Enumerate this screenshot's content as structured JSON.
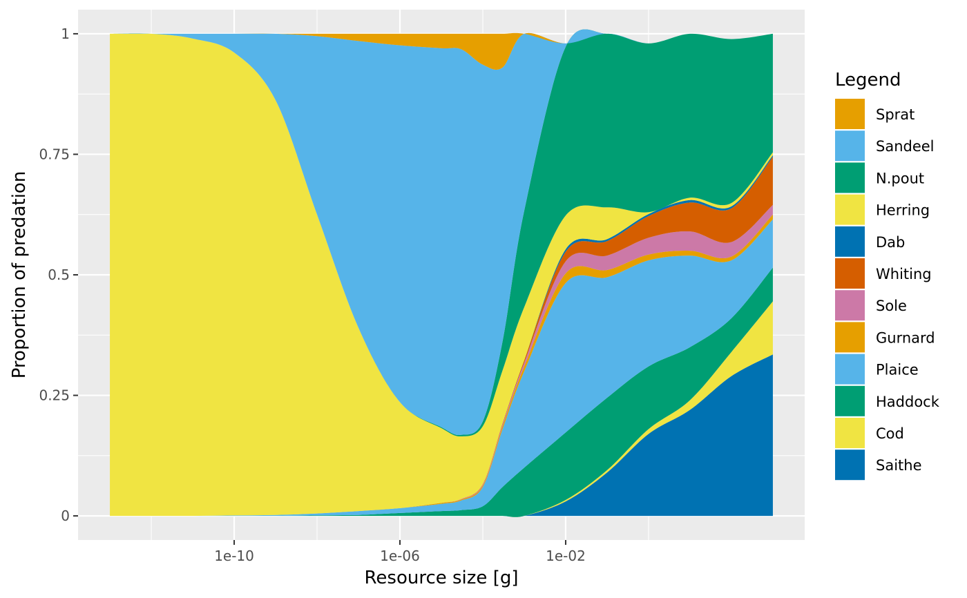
{
  "chart_data": {
    "type": "area",
    "stacked": true,
    "normalized": true,
    "xscale": "log10",
    "xlabel": "Resource size [g]",
    "ylabel": "Proportion of predation",
    "xlim": [
      "1e-13",
      "1e+03"
    ],
    "ylim": [
      0,
      1
    ],
    "x_ticks": [
      "1e-10",
      "1e-06",
      "1e-02"
    ],
    "y_ticks": [
      "0",
      "0.25",
      "0.5",
      "0.75",
      "1"
    ],
    "grid": true,
    "legend_title": "Legend",
    "legend_position": "right",
    "x": [
      "1e-13",
      "1e-12",
      "1e-11",
      "1e-10",
      "1e-09",
      "1e-08",
      "1e-07",
      "1e-06",
      "1e-05",
      "3e-05",
      "1e-04",
      "3e-04",
      "1e-03",
      "1e-02",
      "1e-01",
      "1e+00",
      "1e+01",
      "1e+02",
      "1e+03"
    ],
    "series": [
      {
        "name": "Saithe",
        "color": "#0072B2",
        "values": [
          0,
          0,
          0,
          0,
          0,
          0,
          0,
          0,
          0,
          0,
          0,
          0,
          0,
          0.03,
          0.09,
          0.17,
          0.22,
          0.29,
          0.335
        ]
      },
      {
        "name": "Cod",
        "color": "#F0E442",
        "values": [
          0,
          0,
          0,
          0,
          0,
          0,
          0,
          0,
          0,
          0,
          0,
          0,
          0,
          0.003,
          0.005,
          0.01,
          0.02,
          0.05,
          0.11
        ]
      },
      {
        "name": "Haddock",
        "color": "#009E73",
        "values": [
          0,
          0,
          0,
          0,
          0,
          0.001,
          0.002,
          0.006,
          0.01,
          0.012,
          0.02,
          0.06,
          0.1,
          0.14,
          0.15,
          0.13,
          0.11,
          0.07,
          0.07
        ]
      },
      {
        "name": "Plaice",
        "color": "#56B4E9",
        "values": [
          0,
          0,
          0,
          0.001,
          0.002,
          0.004,
          0.008,
          0.01,
          0.015,
          0.02,
          0.04,
          0.12,
          0.2,
          0.31,
          0.25,
          0.22,
          0.19,
          0.12,
          0.1
        ]
      },
      {
        "name": "Gurnard",
        "color": "#E69F00",
        "values": [
          0,
          0,
          0,
          0,
          0,
          0,
          0,
          0,
          0.002,
          0.002,
          0.003,
          0.006,
          0.01,
          0.02,
          0.015,
          0.012,
          0.01,
          0.008,
          0.01
        ]
      },
      {
        "name": "Sole",
        "color": "#CC79A7",
        "values": [
          0,
          0,
          0,
          0,
          0,
          0,
          0,
          0,
          0,
          0.001,
          0.002,
          0.004,
          0.008,
          0.025,
          0.03,
          0.035,
          0.04,
          0.03,
          0.02
        ]
      },
      {
        "name": "Whiting",
        "color": "#D55E00",
        "values": [
          0,
          0,
          0,
          0,
          0,
          0,
          0,
          0,
          0,
          0,
          0.001,
          0.002,
          0.005,
          0.02,
          0.03,
          0.045,
          0.06,
          0.07,
          0.1
        ]
      },
      {
        "name": "Dab",
        "color": "#0072B2",
        "values": [
          0,
          0,
          0,
          0,
          0,
          0,
          0,
          0,
          0,
          0,
          0,
          0,
          0,
          0.005,
          0.004,
          0.004,
          0.005,
          0.004,
          0.003
        ]
      },
      {
        "name": "Herring",
        "color": "#F0E442",
        "values": [
          1,
          1,
          0.99,
          0.96,
          0.86,
          0.62,
          0.38,
          0.22,
          0.155,
          0.13,
          0.12,
          0.11,
          0.11,
          0.07,
          0.066,
          0.004,
          0.005,
          0.007,
          0.006
        ]
      },
      {
        "name": "N.pout",
        "color": "#009E73",
        "values": [
          0,
          0,
          0,
          0,
          0,
          0,
          0,
          0,
          0.002,
          0.003,
          0.01,
          0.06,
          0.2,
          0.35,
          0.36,
          0.35,
          0.34,
          0.34,
          0.246
        ]
      },
      {
        "name": "Sandeel",
        "color": "#56B4E9",
        "values": [
          0,
          0,
          0.01,
          0.039,
          0.138,
          0.37,
          0.595,
          0.74,
          0.786,
          0.8,
          0.74,
          0.568,
          0.367,
          0.007,
          0,
          0,
          0,
          0,
          0
        ]
      },
      {
        "name": "Sprat",
        "color": "#E69F00",
        "values": [
          0,
          0,
          0,
          0,
          0,
          0.005,
          0.015,
          0.024,
          0.03,
          0.032,
          0.064,
          0.07,
          0,
          0,
          0,
          0,
          0,
          0,
          0
        ]
      }
    ]
  }
}
